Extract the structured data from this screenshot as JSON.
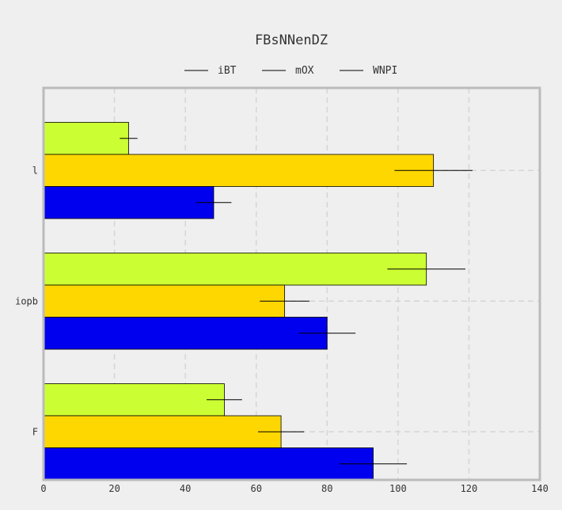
{
  "chart_data": {
    "type": "bar",
    "orientation": "horizontal",
    "title": "FBsNNenDZ",
    "xlabel": "",
    "ylabel": "",
    "categories": [
      "l",
      "iopb",
      "F"
    ],
    "xlim": [
      0,
      140
    ],
    "xticks": [
      0,
      20,
      40,
      60,
      80,
      100,
      120,
      140
    ],
    "grid": true,
    "legend_position": "top-center",
    "series": [
      {
        "name": "iBT",
        "color": "#ccff33",
        "values": [
          24,
          108,
          51
        ],
        "errors": [
          2.5,
          11,
          5
        ]
      },
      {
        "name": "mOX",
        "color": "#ffd700",
        "values": [
          110,
          68,
          67
        ],
        "errors": [
          11,
          7,
          6.5
        ]
      },
      {
        "name": "WNPI",
        "color": "#0000ee",
        "values": [
          48,
          80,
          93
        ],
        "errors": [
          5,
          8,
          9.5
        ]
      }
    ]
  }
}
